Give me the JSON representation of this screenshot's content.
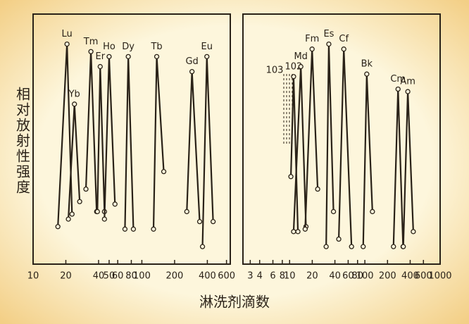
{
  "chart_data": [
    {
      "type": "line",
      "xscale": "log",
      "color": "#2a2218",
      "ylabel": "相对放射性强度",
      "xlabel": "淋洗剂滴数",
      "xlim": [
        10,
        650
      ],
      "ylim": [
        0,
        100
      ],
      "xticks": [
        10,
        20,
        40,
        50,
        60,
        80,
        100,
        200,
        400,
        600
      ],
      "series": [
        {
          "name": "Lu",
          "x": [
            16.9,
            20.5,
            22.8
          ],
          "values": [
            15,
            88,
            20
          ]
        },
        {
          "name": "Yb",
          "x": [
            21.1,
            24,
            26.8
          ],
          "values": [
            18,
            64,
            25
          ]
        },
        {
          "name": "Tm",
          "x": [
            30.6,
            34,
            38.4
          ],
          "values": [
            30,
            85,
            21
          ]
        },
        {
          "name": "Er",
          "x": [
            39,
            41.4,
            45.3
          ],
          "values": [
            21,
            79,
            21
          ]
        },
        {
          "name": "Ho",
          "x": [
            45.3,
            50,
            56.6
          ],
          "values": [
            18,
            83,
            24
          ]
        },
        {
          "name": "Dy",
          "x": [
            69.9,
            75,
            83.6
          ],
          "values": [
            14,
            83,
            14
          ]
        },
        {
          "name": "Tb",
          "x": [
            128,
            137,
            159
          ],
          "values": [
            14,
            83,
            37
          ]
        },
        {
          "name": "Gd",
          "x": [
            259,
            289,
            340
          ],
          "values": [
            21,
            77,
            17
          ]
        },
        {
          "name": "Eu",
          "x": [
            361,
            396,
            452
          ],
          "values": [
            7,
            83,
            17
          ]
        }
      ]
    },
    {
      "type": "line",
      "xscale": "log",
      "color": "#2a2218",
      "annotation": "103",
      "xlim": [
        2.4,
        1000
      ],
      "ylim": [
        0,
        100
      ],
      "xticks": [
        3,
        4,
        6,
        8,
        10,
        20,
        40,
        60,
        80,
        100,
        200,
        400,
        600,
        1000
      ],
      "series": [
        {
          "name": "102",
          "x": [
            10.4,
            11.3,
            12.9
          ],
          "values": [
            35,
            75,
            13
          ]
        },
        {
          "name": "Md",
          "x": [
            11.3,
            14.1,
            16.5
          ],
          "values": [
            13,
            79,
            15
          ]
        },
        {
          "name": "Fm",
          "x": [
            16.1,
            19.9,
            23.6
          ],
          "values": [
            14,
            86,
            30
          ]
        },
        {
          "name": "Es",
          "x": [
            30.6,
            33.2,
            38.3
          ],
          "values": [
            7,
            88,
            21
          ]
        },
        {
          "name": "Cf",
          "x": [
            45,
            52.5,
            66.5
          ],
          "values": [
            10,
            86,
            7
          ]
        },
        {
          "name": "Bk",
          "x": [
            95,
            106,
            126
          ],
          "values": [
            7,
            76,
            21
          ]
        },
        {
          "name": "Cm",
          "x": [
            240,
            276,
            322
          ],
          "values": [
            7,
            70,
            7
          ]
        },
        {
          "name": "Am",
          "x": [
            324,
            372,
            440
          ],
          "values": [
            7,
            69,
            13
          ]
        }
      ]
    }
  ]
}
